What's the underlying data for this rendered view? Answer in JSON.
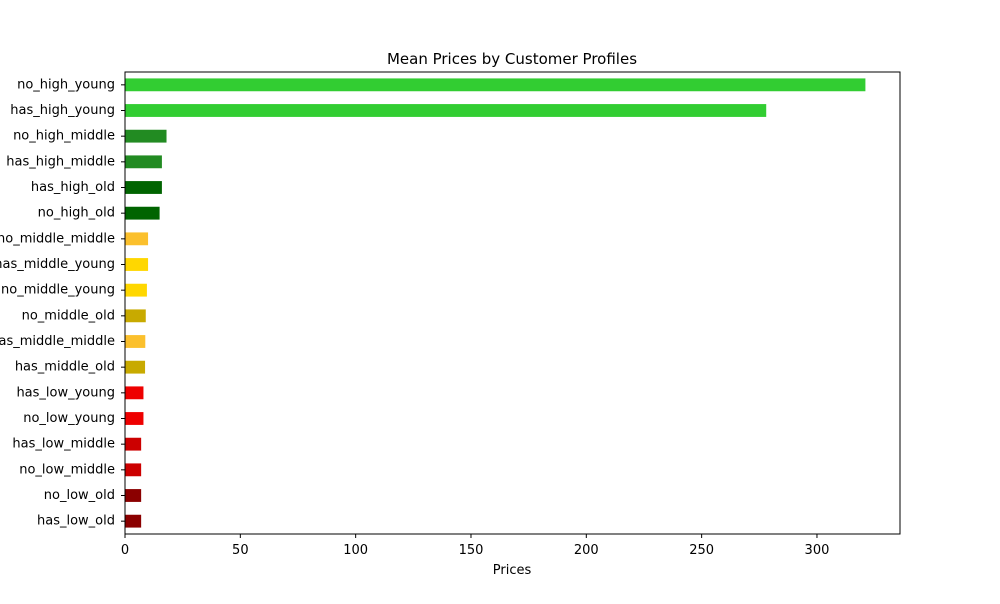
{
  "chart_data": {
    "type": "bar",
    "orientation": "horizontal",
    "title": "Mean Prices by Customer Profiles",
    "xlabel": "Prices",
    "ylabel": "",
    "xlim": [
      0,
      336
    ],
    "x_ticks": [
      0,
      50,
      100,
      150,
      200,
      250,
      300
    ],
    "grid": false,
    "categories": [
      "no_high_young",
      "has_high_young",
      "no_high_middle",
      "has_high_middle",
      "has_high_old",
      "no_high_old",
      "no_middle_middle",
      "has_middle_young",
      "no_middle_young",
      "no_middle_old",
      "has_middle_middle",
      "has_middle_old",
      "has_low_young",
      "no_low_young",
      "has_low_middle",
      "no_low_middle",
      "no_low_old",
      "has_low_old"
    ],
    "values": [
      321,
      278,
      18,
      16,
      16,
      15,
      10,
      10,
      9.5,
      9,
      8.8,
      8.7,
      8,
      8,
      7,
      7,
      7,
      7
    ],
    "colors": [
      "#32cd32",
      "#32cd32",
      "#228b22",
      "#228b22",
      "#006400",
      "#006400",
      "#fbc02d",
      "#ffd700",
      "#ffd700",
      "#c8aa00",
      "#fbc02d",
      "#c8aa00",
      "#ee0000",
      "#ee0000",
      "#cc0000",
      "#cc0000",
      "#8b0000",
      "#8b0000"
    ]
  }
}
